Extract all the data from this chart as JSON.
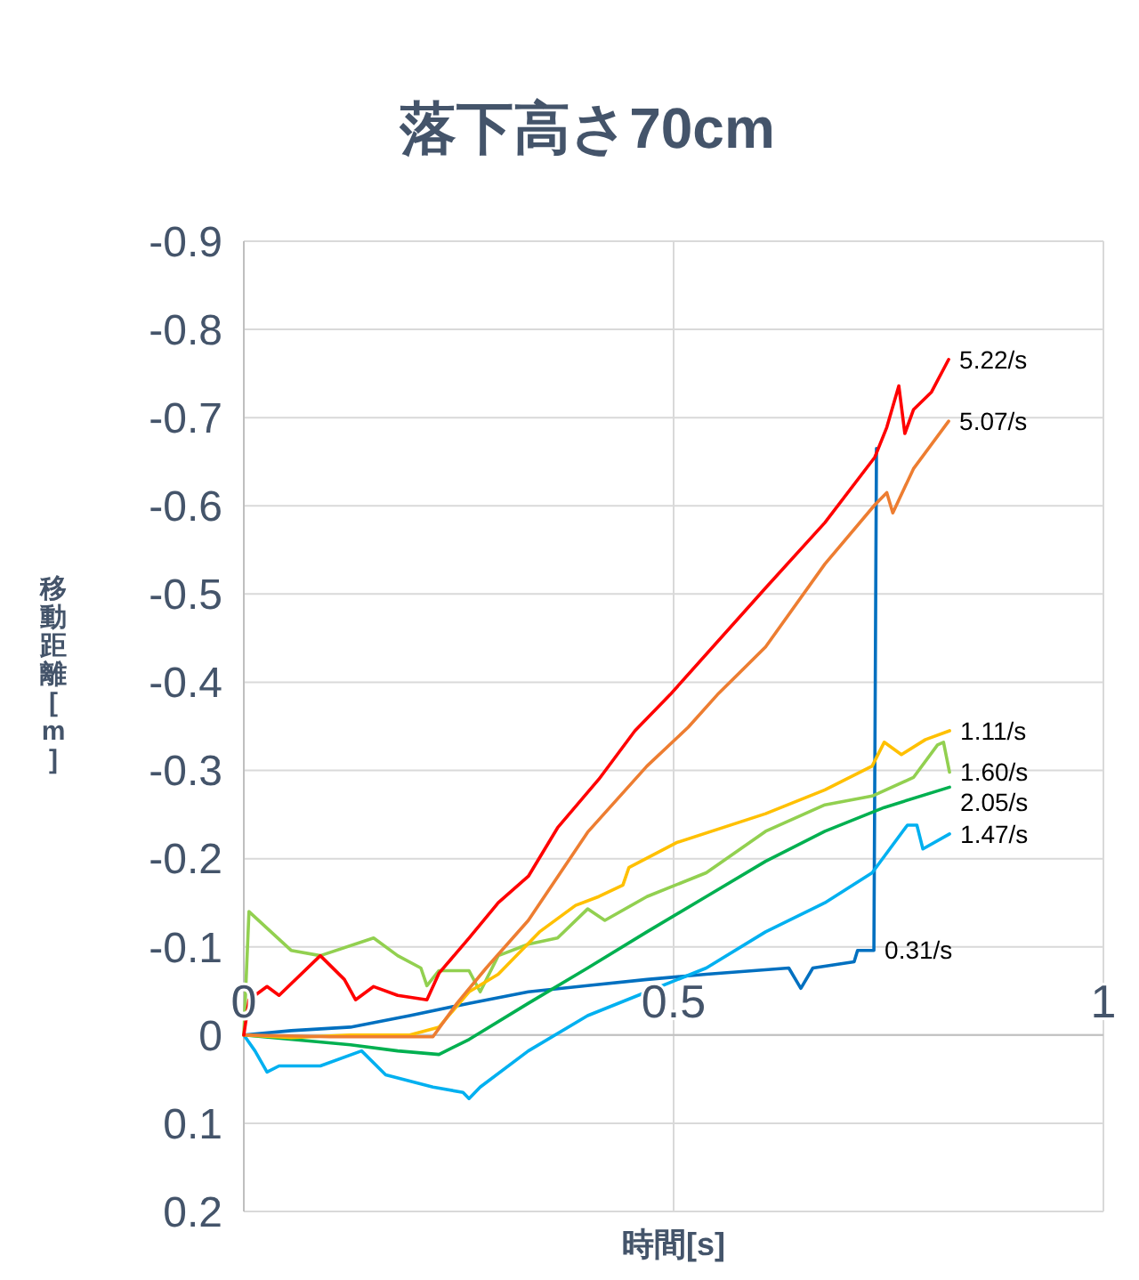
{
  "chart_data": {
    "type": "line",
    "title": "落下高さ70cm",
    "xlabel": "時間[s]",
    "ylabel": "移動距離[m]",
    "xlim": [
      0,
      1
    ],
    "xticks": [
      0,
      0.5,
      1
    ],
    "ylim": [
      0.2,
      -0.9
    ],
    "yticks": [
      -0.9,
      -0.8,
      -0.7,
      -0.6,
      -0.5,
      -0.4,
      -0.3,
      -0.2,
      -0.1,
      0,
      0.1,
      0.2
    ],
    "grid": true,
    "marker": "none",
    "line_style": "solid",
    "series": [
      {
        "color": "#0070c0",
        "x": [
          0,
          0.055,
          0.124,
          0.193,
          0.262,
          0.331,
          0.4,
          0.469,
          0.538,
          0.634,
          0.648,
          0.662,
          0.71,
          0.714,
          0.733,
          0.736
        ],
        "values": [
          0,
          -0.005,
          -0.009,
          -0.022,
          -0.036,
          -0.049,
          -0.056,
          -0.063,
          -0.069,
          -0.076,
          -0.053,
          -0.076,
          -0.083,
          -0.096,
          -0.096,
          -0.665
        ]
      },
      {
        "color": "#00b0f0",
        "x": [
          0,
          0.013,
          0.027,
          0.041,
          0.089,
          0.137,
          0.165,
          0.22,
          0.255,
          0.262,
          0.275,
          0.331,
          0.4,
          0.469,
          0.538,
          0.607,
          0.676,
          0.731,
          0.772,
          0.783,
          0.79,
          0.821
        ],
        "values": [
          0,
          0.018,
          0.042,
          0.035,
          0.035,
          0.018,
          0.045,
          0.059,
          0.065,
          0.072,
          0.059,
          0.018,
          -0.022,
          -0.049,
          -0.076,
          -0.117,
          -0.15,
          -0.184,
          -0.238,
          -0.238,
          -0.211,
          -0.228
        ]
      },
      {
        "color": "#00b050",
        "x": [
          0,
          0.124,
          0.179,
          0.227,
          0.262,
          0.331,
          0.4,
          0.469,
          0.538,
          0.607,
          0.676,
          0.745,
          0.821
        ],
        "values": [
          0,
          0.011,
          0.018,
          0.022,
          0.005,
          -0.036,
          -0.076,
          -0.117,
          -0.157,
          -0.197,
          -0.231,
          -0.258,
          -0.281
        ]
      },
      {
        "color": "#92d050",
        "x": [
          0,
          0.006,
          0.055,
          0.089,
          0.151,
          0.179,
          0.206,
          0.213,
          0.227,
          0.262,
          0.275,
          0.296,
          0.331,
          0.365,
          0.4,
          0.42,
          0.469,
          0.538,
          0.607,
          0.676,
          0.731,
          0.779,
          0.807,
          0.814,
          0.821
        ],
        "values": [
          0,
          -0.14,
          -0.096,
          -0.09,
          -0.11,
          -0.09,
          -0.076,
          -0.056,
          -0.073,
          -0.073,
          -0.049,
          -0.09,
          -0.103,
          -0.11,
          -0.143,
          -0.13,
          -0.157,
          -0.184,
          -0.231,
          -0.261,
          -0.271,
          -0.292,
          -0.329,
          -0.332,
          -0.298
        ]
      },
      {
        "color": "#ffc000",
        "x": [
          0,
          0.055,
          0.124,
          0.193,
          0.227,
          0.262,
          0.296,
          0.344,
          0.386,
          0.413,
          0.441,
          0.448,
          0.503,
          0.607,
          0.676,
          0.731,
          0.745,
          0.765,
          0.793,
          0.821
        ],
        "values": [
          0,
          0.003,
          0,
          0,
          -0.009,
          -0.049,
          -0.069,
          -0.117,
          -0.147,
          -0.157,
          -0.17,
          -0.19,
          -0.218,
          -0.251,
          -0.278,
          -0.305,
          -0.332,
          -0.318,
          -0.335,
          -0.345
        ]
      },
      {
        "color": "#ed7d31",
        "x": [
          0,
          0.1,
          0.22,
          0.248,
          0.282,
          0.331,
          0.4,
          0.469,
          0.517,
          0.551,
          0.607,
          0.676,
          0.734,
          0.748,
          0.755,
          0.779,
          0.82
        ],
        "values": [
          0,
          0.002,
          0.002,
          -0.036,
          -0.076,
          -0.13,
          -0.23,
          -0.305,
          -0.349,
          -0.386,
          -0.44,
          -0.534,
          -0.601,
          -0.615,
          -0.592,
          -0.642,
          -0.696
        ]
      },
      {
        "color": "#ff0000",
        "x": [
          0,
          0.006,
          0.027,
          0.041,
          0.089,
          0.117,
          0.13,
          0.151,
          0.179,
          0.213,
          0.227,
          0.262,
          0.296,
          0.331,
          0.365,
          0.413,
          0.455,
          0.496,
          0.607,
          0.676,
          0.734,
          0.748,
          0.762,
          0.769,
          0.779,
          0.8,
          0.82
        ],
        "values": [
          0,
          -0.04,
          -0.055,
          -0.045,
          -0.09,
          -0.063,
          -0.04,
          -0.055,
          -0.045,
          -0.04,
          -0.07,
          -0.11,
          -0.15,
          -0.18,
          -0.235,
          -0.29,
          -0.345,
          -0.386,
          -0.507,
          -0.581,
          -0.655,
          -0.689,
          -0.736,
          -0.682,
          -0.709,
          -0.729,
          -0.766
        ]
      }
    ],
    "annotations": [
      {
        "text": "5.22/s",
        "x": 0.82,
        "y": -0.766
      },
      {
        "text": "5.07/s",
        "x": 0.82,
        "y": -0.696
      },
      {
        "text": "1.11/s",
        "x": 0.821,
        "y": -0.345
      },
      {
        "text": "1.60/s",
        "x": 0.821,
        "y": -0.298
      },
      {
        "text": "2.05/s",
        "x": 0.821,
        "y": -0.281
      },
      {
        "text": "1.47/s",
        "x": 0.821,
        "y": -0.228
      },
      {
        "text": "0.31/s",
        "x": 0.733,
        "y": -0.096
      }
    ]
  }
}
